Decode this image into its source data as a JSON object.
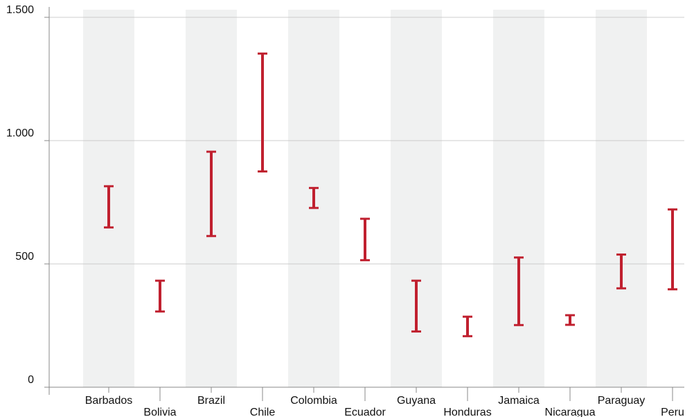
{
  "colors": {
    "bar": "#c0202f",
    "band": "#f0f1f1",
    "grid": "#cccccc",
    "axis": "#888888",
    "text": "#111111"
  },
  "chart_data": {
    "type": "range-bar",
    "title": "",
    "xlabel": "",
    "ylabel": "",
    "ylim": [
      0,
      1500
    ],
    "yticks": [
      0,
      500,
      1000,
      1500
    ],
    "ytick_labels": [
      "0",
      "500",
      "1.000",
      "1.500"
    ],
    "grid": true,
    "categories": [
      "Barbados",
      "Bolivia",
      "Brazil",
      "Chile",
      "Colombia",
      "Ecuador",
      "Guyana",
      "Honduras",
      "Jamaica",
      "Nicaragua",
      "Paraguay",
      "Peru"
    ],
    "ranges": [
      [
        648,
        815
      ],
      [
        307,
        432
      ],
      [
        613,
        955
      ],
      [
        875,
        1353
      ],
      [
        727,
        808
      ],
      [
        515,
        683
      ],
      [
        226,
        432
      ],
      [
        207,
        286
      ],
      [
        252,
        526
      ],
      [
        253,
        292
      ],
      [
        401,
        538
      ],
      [
        397,
        721
      ]
    ]
  }
}
